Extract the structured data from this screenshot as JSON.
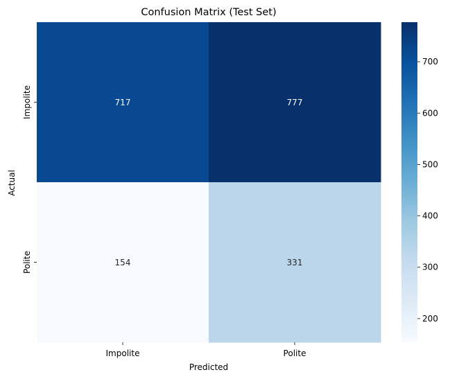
{
  "chart_data": {
    "type": "heatmap",
    "title": "Confusion Matrix (Test Set)",
    "xlabel": "Predicted",
    "ylabel": "Actual",
    "x_categories": [
      "Impolite",
      "Polite"
    ],
    "y_categories": [
      "Impolite",
      "Polite"
    ],
    "values": [
      [
        717,
        777
      ],
      [
        154,
        331
      ]
    ],
    "colormap": "Blues",
    "colorbar": {
      "min": 154,
      "max": 777,
      "ticks": [
        200,
        300,
        400,
        500,
        600,
        700
      ]
    },
    "grid": false,
    "legend": "colorbar-right"
  }
}
